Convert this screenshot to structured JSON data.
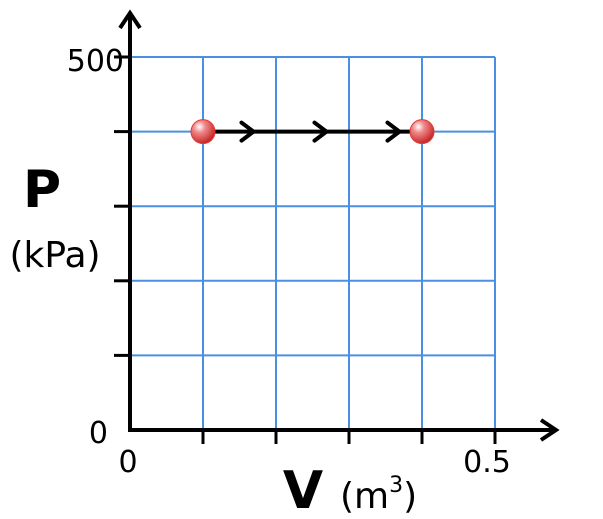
{
  "chart_data": {
    "type": "line",
    "title": "",
    "x_axis": {
      "symbol": "V",
      "unit": "(m",
      "unit_exponent": "3",
      "unit_close": ")",
      "range": [
        0,
        0.5
      ],
      "tick_values": [
        0,
        0.1,
        0.2,
        0.3,
        0.4,
        0.5
      ],
      "tick_labels": [
        {
          "value": 0,
          "text": "0"
        },
        {
          "value": 0.5,
          "text": "0.5"
        }
      ]
    },
    "y_axis": {
      "symbol": "P",
      "unit": "(kPa)",
      "range": [
        0,
        500
      ],
      "tick_values": [
        0,
        100,
        200,
        300,
        400,
        500
      ],
      "tick_labels": [
        {
          "value": 0,
          "text": "0"
        },
        {
          "value": 500,
          "text": "500"
        }
      ]
    },
    "grid": true,
    "series": [
      {
        "points": [
          {
            "x": 0.1,
            "y": 400
          },
          {
            "x": 0.4,
            "y": 400
          }
        ],
        "direction": "increasing-x",
        "arrow_count": 3,
        "point_color": "#e53935",
        "line_color": "#000000"
      }
    ],
    "colors": {
      "grid": "#4a90e2",
      "axis": "#000000",
      "point": "#e53935"
    }
  }
}
